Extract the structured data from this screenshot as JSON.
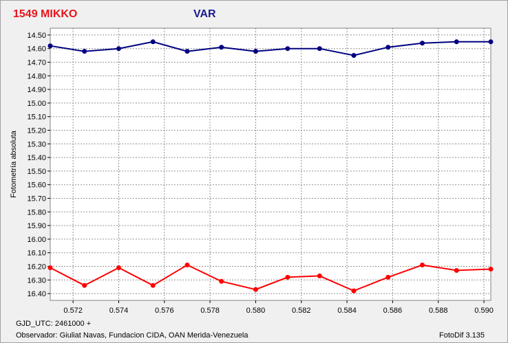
{
  "chart_data": {
    "type": "line",
    "title": "1549 MIKKO",
    "subtitle": "VAR",
    "ylabel": "Fotometría absoluta",
    "xlim": [
      0.571,
      0.5903
    ],
    "ylim": [
      14.45,
      16.45
    ],
    "y_inverted": true,
    "grid": true,
    "x_ticks": [
      "0.572",
      "0.574",
      "0.576",
      "0.578",
      "0.580",
      "0.582",
      "0.584",
      "0.586",
      "0.588",
      "0.590"
    ],
    "y_ticks": [
      "14.50",
      "14.60",
      "14.70",
      "14.80",
      "14.90",
      "15.00",
      "15.10",
      "15.20",
      "15.30",
      "15.40",
      "15.50",
      "15.60",
      "15.70",
      "15.80",
      "15.90",
      "16.00",
      "16.10",
      "16.20",
      "16.30",
      "16.40"
    ],
    "series": [
      {
        "color": "#000080",
        "x": [
          0.571,
          0.5725,
          0.574,
          0.5755,
          0.577,
          0.5785,
          0.58,
          0.5814,
          0.5828,
          0.5843,
          0.5858,
          0.5873,
          0.5888,
          0.5903
        ],
        "y": [
          14.58,
          14.62,
          14.6,
          14.55,
          14.62,
          14.59,
          14.62,
          14.6,
          14.6,
          14.65,
          14.59,
          14.56,
          14.55,
          14.55
        ]
      },
      {
        "color": "#ff0000",
        "x": [
          0.571,
          0.5725,
          0.574,
          0.5755,
          0.577,
          0.5785,
          0.58,
          0.5814,
          0.5828,
          0.5843,
          0.5858,
          0.5873,
          0.5888,
          0.5903
        ],
        "y": [
          16.21,
          16.34,
          16.21,
          16.34,
          16.19,
          16.31,
          16.37,
          16.28,
          16.27,
          16.38,
          16.28,
          16.19,
          16.23,
          16.22
        ]
      }
    ]
  },
  "footer": {
    "gjd": "GJD_UTC: 2461000 +",
    "observer": "Observador: Giuliat Navas, Fundacion CIDA, OAN  Merida-Venezuela",
    "software": "FotoDif 3.135"
  }
}
